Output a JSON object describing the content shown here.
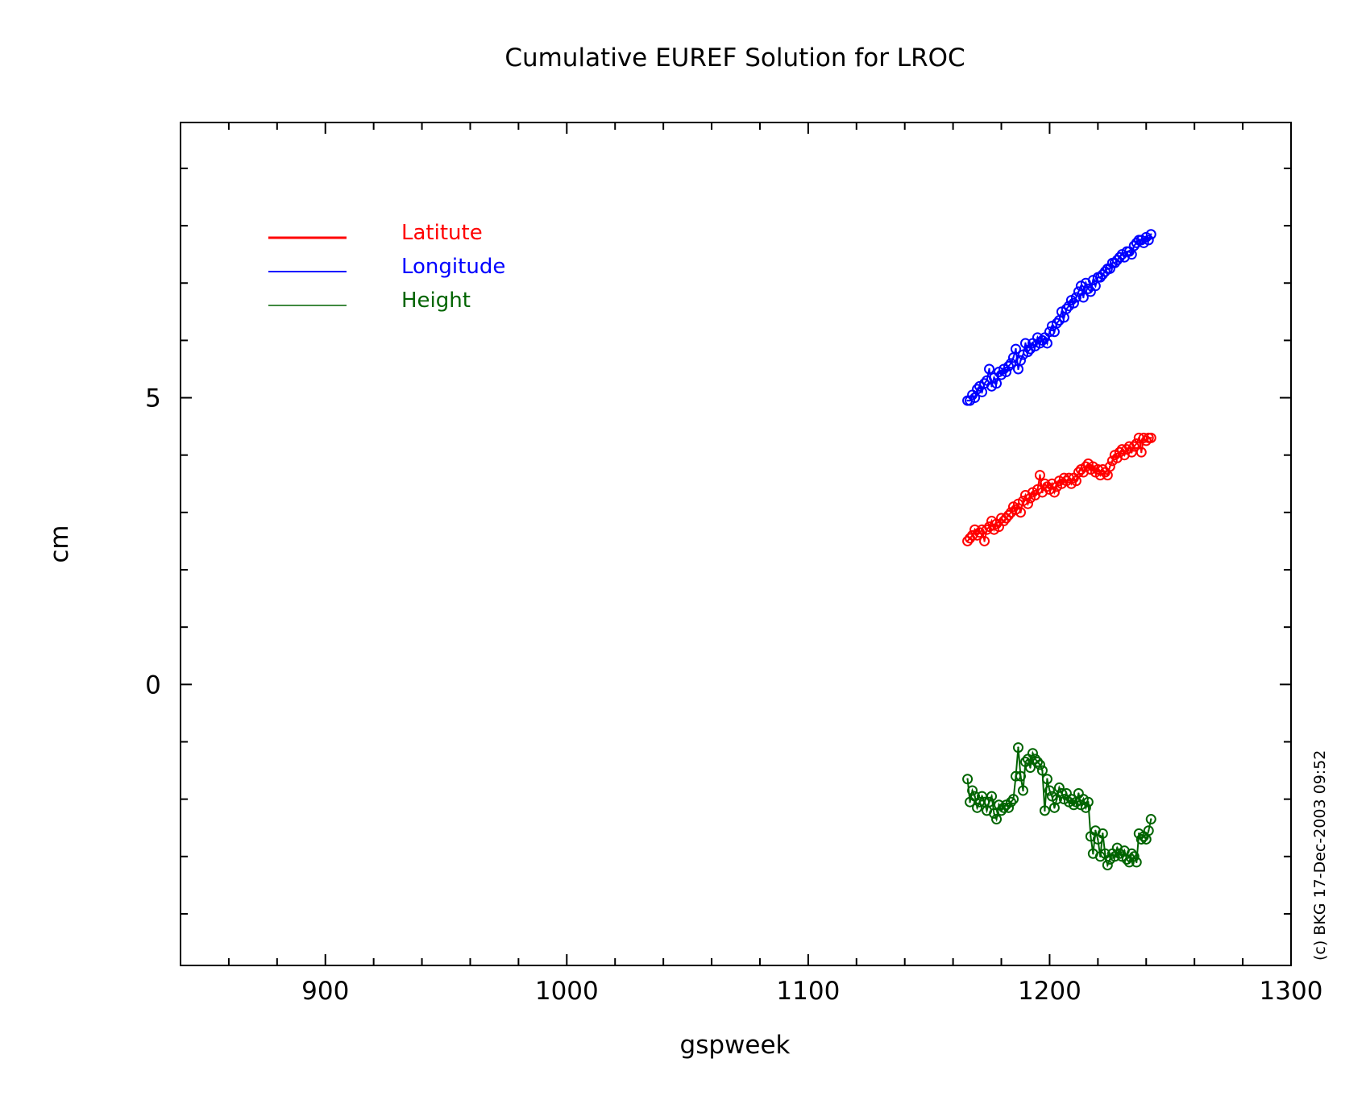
{
  "chart_data": {
    "type": "line",
    "title": "Cumulative EUREF Solution for LROC",
    "xlabel": "gspweek",
    "ylabel": "cm",
    "xlim": [
      840,
      1300
    ],
    "ylim": [
      -4.9,
      9.8
    ],
    "x_ticks": [
      {
        "value": 900,
        "label": "900"
      },
      {
        "value": 1000,
        "label": "1000"
      },
      {
        "value": 1100,
        "label": "1100"
      },
      {
        "value": 1200,
        "label": "1200"
      },
      {
        "value": 1300,
        "label": "1300"
      }
    ],
    "y_ticks": [
      {
        "value": 5,
        "label": "5"
      },
      {
        "value": 0,
        "label": "0"
      }
    ],
    "grid": false,
    "legend_position": "top-left",
    "copyright": "(c) BKG 17-Dec-2003 09:52",
    "marker": "circle",
    "series": [
      {
        "name": "Latitute",
        "color": "#ff0000",
        "x": [
          1166,
          1167,
          1168,
          1169,
          1170,
          1171,
          1172,
          1173,
          1174,
          1175,
          1176,
          1177,
          1178,
          1179,
          1180,
          1181,
          1182,
          1183,
          1184,
          1185,
          1186,
          1187,
          1188,
          1189,
          1190,
          1191,
          1192,
          1193,
          1194,
          1195,
          1196,
          1197,
          1198,
          1199,
          1200,
          1201,
          1202,
          1203,
          1204,
          1205,
          1206,
          1207,
          1208,
          1209,
          1210,
          1211,
          1212,
          1213,
          1214,
          1215,
          1216,
          1217,
          1218,
          1219,
          1220,
          1221,
          1222,
          1223,
          1224,
          1225,
          1226,
          1227,
          1228,
          1229,
          1230,
          1231,
          1232,
          1233,
          1234,
          1235,
          1236,
          1237,
          1238,
          1239,
          1240,
          1241,
          1242
        ],
        "values": [
          2.5,
          2.55,
          2.6,
          2.7,
          2.6,
          2.65,
          2.7,
          2.5,
          2.7,
          2.75,
          2.85,
          2.7,
          2.8,
          2.75,
          2.9,
          2.85,
          2.9,
          2.95,
          3.0,
          3.1,
          3.05,
          3.15,
          3.0,
          3.2,
          3.3,
          3.15,
          3.25,
          3.35,
          3.3,
          3.4,
          3.65,
          3.35,
          3.5,
          3.45,
          3.4,
          3.5,
          3.35,
          3.45,
          3.55,
          3.5,
          3.6,
          3.55,
          3.6,
          3.5,
          3.6,
          3.55,
          3.7,
          3.75,
          3.7,
          3.8,
          3.85,
          3.75,
          3.8,
          3.7,
          3.75,
          3.65,
          3.75,
          3.7,
          3.65,
          3.8,
          3.9,
          4.0,
          3.95,
          4.05,
          4.1,
          4.0,
          4.1,
          4.15,
          4.05,
          4.15,
          4.2,
          4.3,
          4.05,
          4.3,
          4.25,
          4.3,
          4.3
        ]
      },
      {
        "name": "Longitude",
        "color": "#0000ff",
        "x": [
          1166,
          1167,
          1168,
          1169,
          1170,
          1171,
          1172,
          1173,
          1174,
          1175,
          1176,
          1177,
          1178,
          1179,
          1180,
          1181,
          1182,
          1183,
          1184,
          1185,
          1186,
          1187,
          1188,
          1189,
          1190,
          1191,
          1192,
          1193,
          1194,
          1195,
          1196,
          1197,
          1198,
          1199,
          1200,
          1201,
          1202,
          1203,
          1204,
          1205,
          1206,
          1207,
          1208,
          1209,
          1210,
          1211,
          1212,
          1213,
          1214,
          1215,
          1216,
          1217,
          1218,
          1219,
          1220,
          1221,
          1222,
          1223,
          1224,
          1225,
          1226,
          1227,
          1228,
          1229,
          1230,
          1231,
          1232,
          1233,
          1234,
          1235,
          1236,
          1237,
          1238,
          1239,
          1240,
          1241,
          1242
        ],
        "values": [
          4.95,
          4.95,
          5.05,
          5.0,
          5.15,
          5.2,
          5.1,
          5.25,
          5.3,
          5.5,
          5.2,
          5.35,
          5.25,
          5.45,
          5.4,
          5.5,
          5.45,
          5.55,
          5.6,
          5.7,
          5.85,
          5.5,
          5.65,
          5.75,
          5.95,
          5.8,
          5.85,
          5.95,
          5.9,
          6.05,
          5.95,
          6.0,
          6.05,
          5.95,
          6.15,
          6.25,
          6.15,
          6.3,
          6.35,
          6.5,
          6.4,
          6.55,
          6.6,
          6.7,
          6.65,
          6.75,
          6.85,
          6.95,
          6.75,
          7.0,
          6.9,
          6.85,
          7.05,
          6.95,
          7.1,
          7.1,
          7.15,
          7.2,
          7.25,
          7.25,
          7.35,
          7.35,
          7.4,
          7.45,
          7.5,
          7.45,
          7.55,
          7.55,
          7.5,
          7.65,
          7.7,
          7.75,
          7.75,
          7.7,
          7.8,
          7.75,
          7.85
        ]
      },
      {
        "name": "Height",
        "color": "#006400",
        "x": [
          1166,
          1167,
          1168,
          1169,
          1170,
          1171,
          1172,
          1173,
          1174,
          1175,
          1176,
          1177,
          1178,
          1179,
          1180,
          1181,
          1182,
          1183,
          1184,
          1185,
          1186,
          1187,
          1188,
          1189,
          1190,
          1191,
          1192,
          1193,
          1194,
          1195,
          1196,
          1197,
          1198,
          1199,
          1200,
          1201,
          1202,
          1203,
          1204,
          1205,
          1206,
          1207,
          1208,
          1209,
          1210,
          1211,
          1212,
          1213,
          1214,
          1215,
          1216,
          1217,
          1218,
          1219,
          1220,
          1221,
          1222,
          1223,
          1224,
          1225,
          1226,
          1227,
          1228,
          1229,
          1230,
          1231,
          1232,
          1233,
          1234,
          1235,
          1236,
          1237,
          1238,
          1239,
          1240,
          1241,
          1242
        ],
        "values": [
          -1.65,
          -2.05,
          -1.85,
          -1.95,
          -2.15,
          -2.05,
          -1.95,
          -2.05,
          -2.2,
          -2.05,
          -1.95,
          -2.25,
          -2.35,
          -2.1,
          -2.2,
          -2.15,
          -2.1,
          -2.15,
          -2.05,
          -2.0,
          -1.6,
          -1.1,
          -1.6,
          -1.85,
          -1.35,
          -1.3,
          -1.45,
          -1.2,
          -1.3,
          -1.35,
          -1.4,
          -1.5,
          -2.2,
          -1.65,
          -1.85,
          -1.95,
          -2.15,
          -2.0,
          -1.8,
          -1.9,
          -2.0,
          -1.9,
          -2.05,
          -2.0,
          -2.1,
          -2.05,
          -1.9,
          -2.1,
          -2.0,
          -2.15,
          -2.05,
          -2.65,
          -2.95,
          -2.55,
          -2.7,
          -3.0,
          -2.6,
          -2.95,
          -3.15,
          -3.05,
          -2.95,
          -3.0,
          -2.85,
          -2.95,
          -3.0,
          -2.9,
          -3.05,
          -3.1,
          -2.95,
          -3.0,
          -3.1,
          -2.6,
          -2.7,
          -2.65,
          -2.7,
          -2.55,
          -2.35
        ]
      }
    ]
  }
}
